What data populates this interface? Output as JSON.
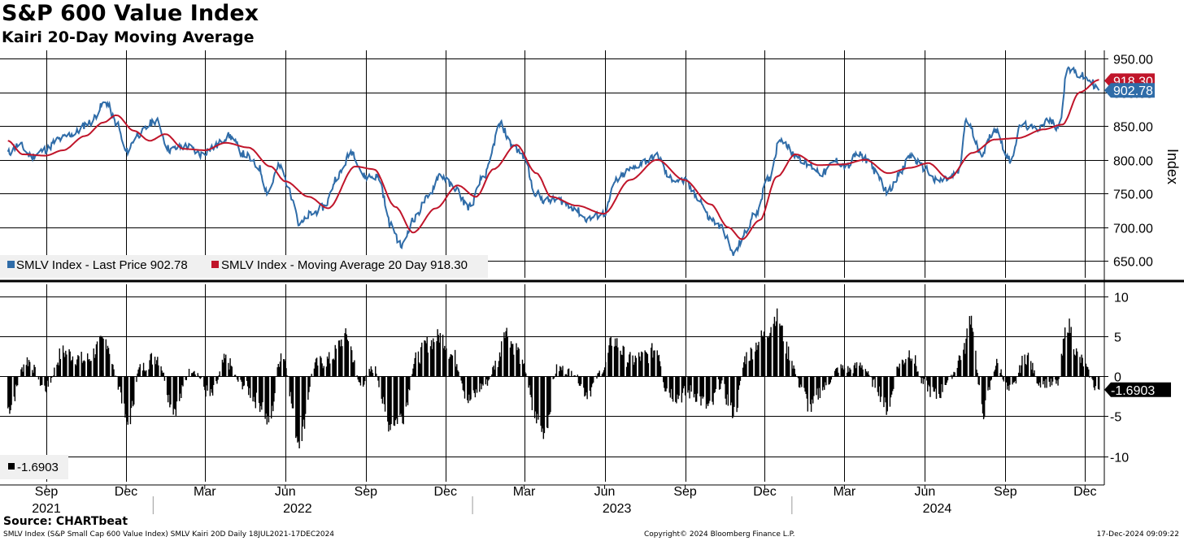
{
  "header": {
    "title": "S&P 600 Value Index",
    "subtitle": "Kairi 20-Day Moving Average"
  },
  "footer": {
    "source": "Source: CHARTbeat",
    "description": "SMLV Index (S&P Small Cap 600 Value Index) SMLV Kairi 20D  Daily 18JUL2021-17DEC2024",
    "copyright": "Copyright© 2024 Bloomberg Finance L.P.",
    "timestamp": "17-Dec-2024 09:09:22"
  },
  "colors": {
    "price": "#2f6ca8",
    "moving_average": "#c0152a",
    "kairi": "#000000",
    "price_tag": "#2f6ca8",
    "ma_tag": "#c0152a"
  },
  "chart_data": [
    {
      "type": "line",
      "panel": "price",
      "ylabel": "Index",
      "ylim": [
        625,
        962
      ],
      "yticks": [
        "950.00",
        "900.00",
        "850.00",
        "800.00",
        "750.00",
        "700.00",
        "650.00"
      ],
      "ytick_values": [
        950,
        900,
        850,
        800,
        750,
        700,
        650
      ],
      "grid": true,
      "legend_position": "bottom-left",
      "series": [
        {
          "name": "SMLV Index - Last Price 902.78",
          "color": "#2f6ca8",
          "last_value_label": "902.78",
          "points": [
            [
              "2021-07-19",
              810
            ],
            [
              "2021-08-01",
              822
            ],
            [
              "2021-08-15",
              805
            ],
            [
              "2021-08-31",
              815
            ],
            [
              "2021-09-15",
              830
            ],
            [
              "2021-10-01",
              838
            ],
            [
              "2021-10-20",
              855
            ],
            [
              "2021-11-08",
              885
            ],
            [
              "2021-11-20",
              855
            ],
            [
              "2021-12-01",
              812
            ],
            [
              "2021-12-15",
              838
            ],
            [
              "2022-01-04",
              858
            ],
            [
              "2022-01-20",
              815
            ],
            [
              "2022-02-08",
              820
            ],
            [
              "2022-02-25",
              808
            ],
            [
              "2022-03-10",
              818
            ],
            [
              "2022-03-29",
              835
            ],
            [
              "2022-04-15",
              808
            ],
            [
              "2022-05-01",
              790
            ],
            [
              "2022-05-12",
              752
            ],
            [
              "2022-05-25",
              790
            ],
            [
              "2022-06-10",
              745
            ],
            [
              "2022-06-17",
              703
            ],
            [
              "2022-07-01",
              720
            ],
            [
              "2022-07-15",
              730
            ],
            [
              "2022-08-01",
              778
            ],
            [
              "2022-08-16",
              812
            ],
            [
              "2022-08-31",
              775
            ],
            [
              "2022-09-15",
              775
            ],
            [
              "2022-09-30",
              702
            ],
            [
              "2022-10-12",
              672
            ],
            [
              "2022-10-25",
              710
            ],
            [
              "2022-11-10",
              742
            ],
            [
              "2022-11-25",
              778
            ],
            [
              "2022-12-10",
              760
            ],
            [
              "2022-12-28",
              730
            ],
            [
              "2023-01-15",
              778
            ],
            [
              "2023-02-02",
              852
            ],
            [
              "2023-02-15",
              822
            ],
            [
              "2023-03-01",
              805
            ],
            [
              "2023-03-13",
              752
            ],
            [
              "2023-03-24",
              740
            ],
            [
              "2023-04-10",
              740
            ],
            [
              "2023-04-25",
              730
            ],
            [
              "2023-05-12",
              712
            ],
            [
              "2023-05-31",
              720
            ],
            [
              "2023-06-15",
              770
            ],
            [
              "2023-06-30",
              785
            ],
            [
              "2023-07-18",
              798
            ],
            [
              "2023-07-31",
              805
            ],
            [
              "2023-08-15",
              772
            ],
            [
              "2023-08-31",
              768
            ],
            [
              "2023-09-15",
              745
            ],
            [
              "2023-09-30",
              712
            ],
            [
              "2023-10-12",
              700
            ],
            [
              "2023-10-27",
              660
            ],
            [
              "2023-11-08",
              690
            ],
            [
              "2023-11-20",
              720
            ],
            [
              "2023-12-05",
              770
            ],
            [
              "2023-12-19",
              832
            ],
            [
              "2024-01-04",
              808
            ],
            [
              "2024-01-20",
              792
            ],
            [
              "2024-02-05",
              780
            ],
            [
              "2024-02-20",
              798
            ],
            [
              "2024-03-05",
              790
            ],
            [
              "2024-03-15",
              808
            ],
            [
              "2024-03-28",
              800
            ],
            [
              "2024-04-10",
              772
            ],
            [
              "2024-04-19",
              752
            ],
            [
              "2024-05-03",
              778
            ],
            [
              "2024-05-15",
              806
            ],
            [
              "2024-05-31",
              788
            ],
            [
              "2024-06-14",
              768
            ],
            [
              "2024-06-28",
              772
            ],
            [
              "2024-07-10",
              782
            ],
            [
              "2024-07-18",
              858
            ],
            [
              "2024-08-05",
              810
            ],
            [
              "2024-08-20",
              845
            ],
            [
              "2024-09-06",
              800
            ],
            [
              "2024-09-20",
              852
            ],
            [
              "2024-10-05",
              845
            ],
            [
              "2024-10-20",
              858
            ],
            [
              "2024-11-01",
              848
            ],
            [
              "2024-11-11",
              935
            ],
            [
              "2024-11-25",
              925
            ],
            [
              "2024-12-06",
              918
            ],
            [
              "2024-12-17",
              902.78
            ]
          ]
        },
        {
          "name": "SMLV Index - Moving Average 20 Day 918.30",
          "color": "#c0152a",
          "last_value_label": "918.30",
          "points": [
            [
              "2021-07-19",
              828
            ],
            [
              "2021-08-05",
              808
            ],
            [
              "2021-08-31",
              806
            ],
            [
              "2021-09-20",
              814
            ],
            [
              "2021-10-15",
              835
            ],
            [
              "2021-11-05",
              855
            ],
            [
              "2021-11-20",
              866
            ],
            [
              "2021-12-10",
              843
            ],
            [
              "2021-12-28",
              828
            ],
            [
              "2022-01-15",
              838
            ],
            [
              "2022-02-05",
              816
            ],
            [
              "2022-03-01",
              814
            ],
            [
              "2022-03-25",
              825
            ],
            [
              "2022-04-20",
              818
            ],
            [
              "2022-05-15",
              790
            ],
            [
              "2022-06-01",
              768
            ],
            [
              "2022-06-28",
              745
            ],
            [
              "2022-07-20",
              728
            ],
            [
              "2022-08-20",
              790
            ],
            [
              "2022-09-10",
              786
            ],
            [
              "2022-10-05",
              730
            ],
            [
              "2022-10-25",
              692
            ],
            [
              "2022-11-20",
              728
            ],
            [
              "2022-12-15",
              762
            ],
            [
              "2023-01-05",
              745
            ],
            [
              "2023-01-25",
              786
            ],
            [
              "2023-02-20",
              822
            ],
            [
              "2023-03-15",
              780
            ],
            [
              "2023-04-01",
              745
            ],
            [
              "2023-04-30",
              732
            ],
            [
              "2023-05-31",
              720
            ],
            [
              "2023-06-30",
              770
            ],
            [
              "2023-07-31",
              800
            ],
            [
              "2023-08-31",
              770
            ],
            [
              "2023-09-30",
              734
            ],
            [
              "2023-10-20",
              700
            ],
            [
              "2023-11-05",
              682
            ],
            [
              "2023-11-25",
              710
            ],
            [
              "2023-12-15",
              775
            ],
            [
              "2024-01-05",
              808
            ],
            [
              "2024-01-31",
              792
            ],
            [
              "2024-02-28",
              793
            ],
            [
              "2024-03-25",
              800
            ],
            [
              "2024-04-20",
              780
            ],
            [
              "2024-05-15",
              788
            ],
            [
              "2024-06-05",
              795
            ],
            [
              "2024-06-28",
              772
            ],
            [
              "2024-07-25",
              810
            ],
            [
              "2024-08-20",
              830
            ],
            [
              "2024-09-15",
              832
            ],
            [
              "2024-10-15",
              845
            ],
            [
              "2024-11-05",
              852
            ],
            [
              "2024-11-25",
              900
            ],
            [
              "2024-12-17",
              918.3
            ]
          ]
        }
      ]
    },
    {
      "type": "bar",
      "panel": "kairi",
      "ylim": [
        -13.2,
        11.5
      ],
      "yticks": [
        "10",
        "5",
        "0",
        "-5",
        "-10"
      ],
      "ytick_values": [
        10,
        5,
        0,
        -5,
        -10
      ],
      "grid": true,
      "legend_position": "bottom-left",
      "series": [
        {
          "name": "-1.6903",
          "color": "#000000",
          "last_value_label": "-1.6903",
          "anchors": [
            [
              "2021-07-19",
              -4
            ],
            [
              "2021-08-10",
              2
            ],
            [
              "2021-08-31",
              -1.5
            ],
            [
              "2021-09-20",
              3
            ],
            [
              "2021-10-15",
              2
            ],
            [
              "2021-11-08",
              4.5
            ],
            [
              "2021-11-22",
              -1
            ],
            [
              "2021-12-03",
              -6
            ],
            [
              "2021-12-17",
              1
            ],
            [
              "2022-01-05",
              2.5
            ],
            [
              "2022-01-25",
              -4
            ],
            [
              "2022-02-15",
              1
            ],
            [
              "2022-03-08",
              -2.5
            ],
            [
              "2022-03-25",
              2
            ],
            [
              "2022-04-12",
              -1
            ],
            [
              "2022-05-05",
              -3.5
            ],
            [
              "2022-05-13",
              -6
            ],
            [
              "2022-05-28",
              3
            ],
            [
              "2022-06-17",
              -8
            ],
            [
              "2022-07-05",
              1.5
            ],
            [
              "2022-07-20",
              2
            ],
            [
              "2022-08-10",
              5
            ],
            [
              "2022-08-26",
              -1
            ],
            [
              "2022-09-10",
              1
            ],
            [
              "2022-09-28",
              -6
            ],
            [
              "2022-10-13",
              -5
            ],
            [
              "2022-10-28",
              2
            ],
            [
              "2022-11-10",
              4
            ],
            [
              "2022-11-25",
              5
            ],
            [
              "2022-12-10",
              2.5
            ],
            [
              "2022-12-28",
              -3
            ],
            [
              "2023-01-15",
              -1
            ],
            [
              "2023-01-31",
              2
            ],
            [
              "2023-02-05",
              6
            ],
            [
              "2023-02-20",
              3.5
            ],
            [
              "2023-03-01",
              1
            ],
            [
              "2023-03-13",
              -5
            ],
            [
              "2023-03-24",
              -7
            ],
            [
              "2023-04-08",
              1
            ],
            [
              "2023-04-25",
              0.5
            ],
            [
              "2023-05-12",
              -2
            ],
            [
              "2023-05-31",
              1
            ],
            [
              "2023-06-10",
              4.5
            ],
            [
              "2023-06-30",
              2
            ],
            [
              "2023-07-18",
              2.5
            ],
            [
              "2023-07-31",
              3.5
            ],
            [
              "2023-08-10",
              -1.5
            ],
            [
              "2023-08-22",
              -2.5
            ],
            [
              "2023-09-08",
              -2
            ],
            [
              "2023-09-30",
              -4
            ],
            [
              "2023-10-10",
              -1
            ],
            [
              "2023-10-27",
              -4.5
            ],
            [
              "2023-11-10",
              2.5
            ],
            [
              "2023-11-30",
              5
            ],
            [
              "2023-12-15",
              7.5
            ],
            [
              "2023-12-28",
              3
            ],
            [
              "2024-01-10",
              -1
            ],
            [
              "2024-01-22",
              -4
            ],
            [
              "2024-02-05",
              -1.5
            ],
            [
              "2024-02-25",
              1
            ],
            [
              "2024-03-08",
              0.8
            ],
            [
              "2024-03-20",
              1.5
            ],
            [
              "2024-04-05",
              -1
            ],
            [
              "2024-04-19",
              -4
            ],
            [
              "2024-05-03",
              1.5
            ],
            [
              "2024-05-15",
              3
            ],
            [
              "2024-05-31",
              -1
            ],
            [
              "2024-06-14",
              -2.5
            ],
            [
              "2024-06-28",
              -0.5
            ],
            [
              "2024-07-15",
              3
            ],
            [
              "2024-07-23",
              7.5
            ],
            [
              "2024-08-06",
              -4.5
            ],
            [
              "2024-08-22",
              1.5
            ],
            [
              "2024-09-06",
              -2
            ],
            [
              "2024-09-25",
              2.5
            ],
            [
              "2024-10-10",
              -0.8
            ],
            [
              "2024-10-30",
              -1
            ],
            [
              "2024-11-11",
              6.5
            ],
            [
              "2024-11-25",
              2
            ],
            [
              "2024-12-17",
              -1.6903
            ]
          ]
        }
      ]
    }
  ],
  "x_axis": {
    "month_labels": [
      {
        "date": "2021-09-01",
        "label": "Sep"
      },
      {
        "date": "2021-12-01",
        "label": "Dec"
      },
      {
        "date": "2022-03-01",
        "label": "Mar"
      },
      {
        "date": "2022-06-01",
        "label": "Jun"
      },
      {
        "date": "2022-09-01",
        "label": "Sep"
      },
      {
        "date": "2022-12-01",
        "label": "Dec"
      },
      {
        "date": "2023-03-01",
        "label": "Mar"
      },
      {
        "date": "2023-06-01",
        "label": "Jun"
      },
      {
        "date": "2023-09-01",
        "label": "Sep"
      },
      {
        "date": "2023-12-01",
        "label": "Dec"
      },
      {
        "date": "2024-03-01",
        "label": "Mar"
      },
      {
        "date": "2024-06-01",
        "label": "Jun"
      },
      {
        "date": "2024-09-01",
        "label": "Sep"
      },
      {
        "date": "2024-12-01",
        "label": "Dec"
      }
    ],
    "year_labels": [
      {
        "date": "2021-09-01",
        "label": "2021"
      },
      {
        "date": "2022-06-15",
        "label": "2022"
      },
      {
        "date": "2023-06-15",
        "label": "2023"
      },
      {
        "date": "2024-06-15",
        "label": "2024"
      }
    ]
  }
}
